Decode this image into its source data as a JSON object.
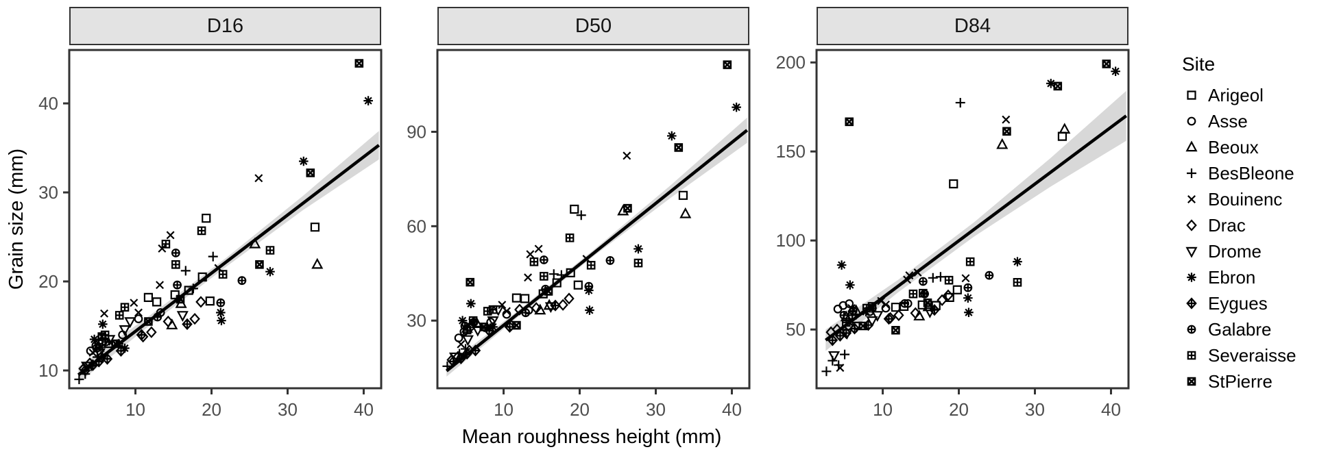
{
  "figure": {
    "xlabel": "Mean roughness height (mm)",
    "ylabel": "Grain size (mm)",
    "legend_title": "Site"
  },
  "chart_data": {
    "type": "scatter",
    "description": "Faceted scatter plots of grain size percentiles (D16, D50, D84) versus mean roughness height, with linear fit and confidence ribbon per facet; point shape encodes Site.",
    "xlabel": "Mean roughness height (mm)",
    "ylabel": "Grain size (mm)",
    "legend_title": "Site",
    "xlim": [
      1.3,
      42.3
    ],
    "xticks": [
      10,
      20,
      30,
      40
    ],
    "grid": false,
    "legend_position": "right",
    "facets": [
      {
        "key": "d16",
        "label": "D16",
        "ylim": [
          8,
          46
        ],
        "yticks": [
          10,
          20,
          30,
          40
        ],
        "line": {
          "x1": 2.5,
          "y1": 9.5,
          "x2": 42,
          "y2": 35.3
        },
        "ribbon": {
          "x": [
            2.5,
            12,
            22,
            32,
            42
          ],
          "y": [
            9.5,
            15.7,
            22.2,
            28.8,
            35.3
          ],
          "hw": [
            0.9,
            0.55,
            0.5,
            0.8,
            1.6
          ]
        }
      },
      {
        "key": "d50",
        "label": "D50",
        "ylim": [
          8.5,
          116
        ],
        "yticks": [
          30,
          60,
          90
        ],
        "line": {
          "x1": 2.5,
          "y1": 14,
          "x2": 42,
          "y2": 90.5
        },
        "ribbon": {
          "x": [
            2.5,
            12,
            22,
            32,
            42
          ],
          "y": [
            14,
            32.4,
            51.8,
            71.1,
            90.5
          ],
          "hw": [
            1.8,
            1.0,
            1.0,
            2.0,
            4.0
          ]
        }
      },
      {
        "key": "d84",
        "label": "D84",
        "ylim": [
          17,
          207
        ],
        "yticks": [
          50,
          100,
          150,
          200
        ],
        "line": {
          "x1": 2.5,
          "y1": 44,
          "x2": 42,
          "y2": 170
        },
        "ribbon": {
          "x": [
            2.5,
            12,
            22,
            32,
            42
          ],
          "y": [
            44,
            74.3,
            106.2,
            138.1,
            170
          ],
          "hw": [
            6,
            3.5,
            4,
            8,
            14
          ]
        }
      }
    ],
    "sites": [
      {
        "name": "Arigeol",
        "shape": "square"
      },
      {
        "name": "Asse",
        "shape": "circle"
      },
      {
        "name": "Beoux",
        "shape": "triangle-up"
      },
      {
        "name": "BesBleone",
        "shape": "plus"
      },
      {
        "name": "Bouinenc",
        "shape": "cross"
      },
      {
        "name": "Drac",
        "shape": "diamond"
      },
      {
        "name": "Drome",
        "shape": "triangle-down"
      },
      {
        "name": "Ebron",
        "shape": "asterisk"
      },
      {
        "name": "Eygues",
        "shape": "diamond-plus"
      },
      {
        "name": "Galabre",
        "shape": "circle-plus"
      },
      {
        "name": "Severaisse",
        "shape": "square-plus"
      },
      {
        "name": "StPierre",
        "shape": "square-cross"
      }
    ],
    "samples": [
      [
        "Arigeol",
        11.7,
        18.2,
        37.2,
        62.5
      ],
      [
        "Arigeol",
        12.8,
        17.7,
        37.0,
        63.0
      ],
      [
        "Arigeol",
        15.2,
        18.5,
        38.5,
        63.8
      ],
      [
        "Arigeol",
        17.0,
        19.0,
        42.0,
        63.5
      ],
      [
        "Arigeol",
        18.8,
        20.5,
        45.2,
        68.0
      ],
      [
        "Arigeol",
        19.3,
        27.1,
        65.4,
        131.8
      ],
      [
        "Arigeol",
        19.8,
        17.8,
        41.3,
        72.3
      ],
      [
        "Arigeol",
        33.6,
        26.1,
        69.8,
        158.5
      ],
      [
        "Asse",
        4.1,
        12.2,
        24.5,
        61.5
      ],
      [
        "Asse",
        4.8,
        12.8,
        26.5,
        63.5
      ],
      [
        "Asse",
        5.6,
        13.2,
        28.0,
        64.5
      ],
      [
        "Asse",
        8.3,
        14.0,
        29.5,
        60.0
      ],
      [
        "Asse",
        10.4,
        15.8,
        32.0,
        62.0
      ],
      [
        "Asse",
        13.3,
        16.5,
        33.3,
        64.6
      ],
      [
        "Beoux",
        5.2,
        12.6,
        27.5,
        57.0
      ],
      [
        "Beoux",
        6.5,
        13.0,
        29.0,
        60.5
      ],
      [
        "Beoux",
        14.8,
        15.1,
        33.3,
        57.5
      ],
      [
        "Beoux",
        16.0,
        17.5,
        34.8,
        62.7
      ],
      [
        "Beoux",
        25.7,
        24.2,
        64.8,
        153.8
      ],
      [
        "Beoux",
        33.9,
        21.9,
        63.9,
        162.4
      ],
      [
        "BesBleone",
        2.6,
        9.0,
        15.5,
        26.5
      ],
      [
        "BesBleone",
        3.4,
        9.6,
        17.0,
        32.5
      ],
      [
        "BesBleone",
        4.2,
        10.5,
        19.5,
        30.0
      ],
      [
        "BesBleone",
        5.0,
        11.5,
        21.0,
        36.0
      ],
      [
        "BesBleone",
        16.6,
        21.2,
        44.8,
        79.0
      ],
      [
        "BesBleone",
        17.6,
        19.2,
        44.5,
        79.6
      ],
      [
        "BesBleone",
        20.2,
        22.8,
        63.5,
        177.4
      ],
      [
        "Bouinenc",
        4.4,
        12.0,
        22.5,
        28.5
      ],
      [
        "Bouinenc",
        5.9,
        16.4,
        29.5,
        62.0
      ],
      [
        "Bouinenc",
        9.8,
        17.6,
        35.0,
        66.0
      ],
      [
        "Bouinenc",
        10.4,
        16.5,
        33.0,
        64.0
      ],
      [
        "Bouinenc",
        13.2,
        19.6,
        43.7,
        78.0
      ],
      [
        "Bouinenc",
        13.5,
        23.7,
        51.1,
        80.4
      ],
      [
        "Bouinenc",
        14.6,
        25.2,
        52.8,
        82.0
      ],
      [
        "Bouinenc",
        20.9,
        21.5,
        49.6,
        78.8
      ],
      [
        "Bouinenc",
        26.2,
        31.6,
        82.4,
        167.9
      ],
      [
        "Drac",
        3.2,
        10.2,
        17.5,
        48.5
      ],
      [
        "Drac",
        4.0,
        10.8,
        18.5,
        50.0
      ],
      [
        "Drac",
        5.5,
        11.5,
        20.5,
        52.0
      ],
      [
        "Drac",
        11.0,
        13.8,
        28.5,
        56.5
      ],
      [
        "Drac",
        12.1,
        14.3,
        33.5,
        58.0
      ],
      [
        "Drac",
        14.3,
        15.5,
        34.0,
        59.2
      ],
      [
        "Drac",
        17.8,
        15.8,
        35.0,
        66.5
      ],
      [
        "Drac",
        18.6,
        17.7,
        37.0,
        69.2
      ],
      [
        "Drome",
        3.6,
        10.5,
        18.5,
        35.4
      ],
      [
        "Drome",
        5.3,
        12.0,
        24.0,
        48.0
      ],
      [
        "Drome",
        6.6,
        13.5,
        27.0,
        52.0
      ],
      [
        "Drome",
        8.6,
        14.6,
        30.0,
        55.0
      ],
      [
        "Drome",
        9.3,
        15.5,
        33.5,
        58.0
      ],
      [
        "Drome",
        16.2,
        16.2,
        34.5,
        60.0
      ],
      [
        "Ebron",
        4.6,
        13.5,
        30.0,
        86.2
      ],
      [
        "Ebron",
        5.7,
        15.2,
        35.4,
        75.0
      ],
      [
        "Ebron",
        7.8,
        13.0,
        27.5,
        60.0
      ],
      [
        "Ebron",
        8.6,
        12.5,
        28.0,
        62.0
      ],
      [
        "Ebron",
        21.2,
        16.5,
        39.6,
        67.7
      ],
      [
        "Ebron",
        21.3,
        15.6,
        33.3,
        59.6
      ],
      [
        "Ebron",
        27.7,
        21.1,
        52.8,
        88.1
      ],
      [
        "Ebron",
        32.1,
        33.5,
        88.7,
        188.2
      ],
      [
        "Ebron",
        40.6,
        40.3,
        97.8,
        195.0
      ],
      [
        "Eygues",
        3.4,
        10.0,
        17.0,
        44.0
      ],
      [
        "Eygues",
        4.4,
        10.6,
        18.0,
        46.5
      ],
      [
        "Eygues",
        5.2,
        11.0,
        19.5,
        48.0
      ],
      [
        "Eygues",
        6.3,
        11.3,
        20.5,
        50.5
      ],
      [
        "Eygues",
        8.1,
        12.2,
        26.8,
        52.5
      ],
      [
        "Eygues",
        10.8,
        14.0,
        28.0,
        56.0
      ],
      [
        "Eygues",
        16.8,
        15.2,
        34.8,
        61.0
      ],
      [
        "Galabre",
        4.9,
        12.5,
        28.3,
        58.0
      ],
      [
        "Galabre",
        6.1,
        13.2,
        29.5,
        60.5
      ],
      [
        "Galabre",
        12.9,
        16.0,
        32.5,
        64.6
      ],
      [
        "Galabre",
        15.3,
        23.2,
        49.3,
        77.0
      ],
      [
        "Galabre",
        15.5,
        19.6,
        40.0,
        70.0
      ],
      [
        "Galabre",
        21.2,
        17.6,
        40.9,
        73.5
      ],
      [
        "Galabre",
        24.0,
        20.1,
        49.1,
        80.4
      ],
      [
        "Severaisse",
        5.2,
        13.0,
        27.0,
        54.0
      ],
      [
        "Severaisse",
        6.0,
        14.0,
        30.0,
        58.0
      ],
      [
        "Severaisse",
        7.9,
        16.2,
        33.0,
        62.0
      ],
      [
        "Severaisse",
        8.6,
        17.1,
        33.5,
        63.0
      ],
      [
        "Severaisse",
        14.0,
        24.2,
        48.7,
        70.0
      ],
      [
        "Severaisse",
        15.3,
        21.9,
        44.1,
        70.4
      ],
      [
        "Severaisse",
        18.7,
        25.7,
        56.3,
        77.7
      ],
      [
        "Severaisse",
        21.5,
        20.8,
        47.6,
        88.1
      ],
      [
        "Severaisse",
        27.7,
        23.5,
        48.3,
        76.5
      ],
      [
        "StPierre",
        5.6,
        13.8,
        42.2,
        166.7
      ],
      [
        "StPierre",
        7.4,
        13.0,
        28.0,
        52.0
      ],
      [
        "StPierre",
        11.7,
        15.5,
        28.5,
        49.6
      ],
      [
        "StPierre",
        15.9,
        18.0,
        39.3,
        65.0
      ],
      [
        "StPierre",
        26.3,
        21.9,
        65.7,
        161.3
      ],
      [
        "StPierre",
        33.0,
        32.2,
        85.0,
        186.7
      ],
      [
        "StPierre",
        39.4,
        44.5,
        111.3,
        199.2
      ]
    ],
    "style": {
      "point_color": "#000000",
      "line_color": "#000000",
      "ribbon_color": "#d4d4d4",
      "panel_border": "#333333",
      "tick_label_color": "#4d4d4d",
      "strip_fill": "#e3e3e3"
    }
  }
}
